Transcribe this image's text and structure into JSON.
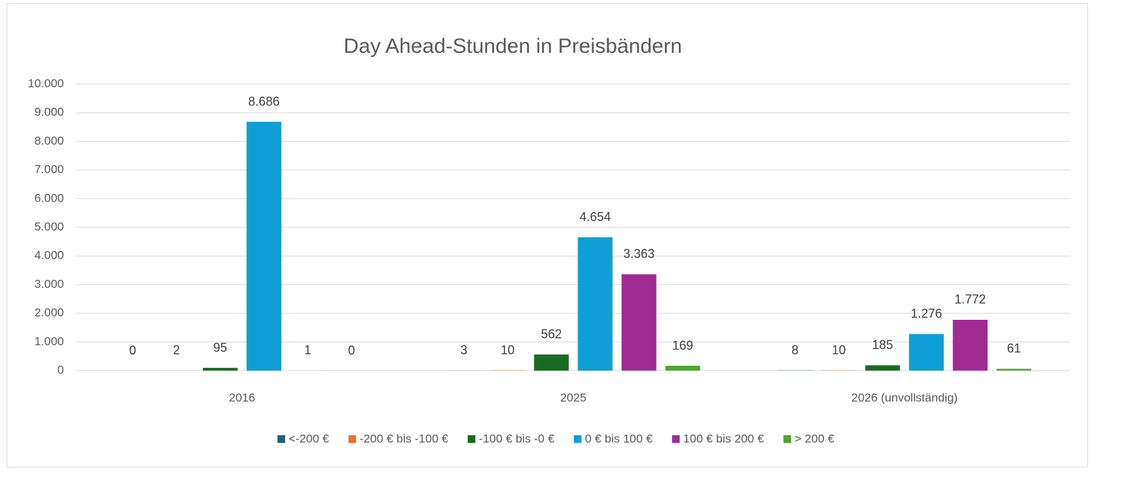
{
  "chart_data": {
    "type": "bar",
    "title": "Day Ahead-Stunden in Preisbändern",
    "categories": [
      "2016",
      "2025",
      "2026 (unvollständig)"
    ],
    "series": [
      {
        "name": "<-200 €",
        "color": "#1f5f7f",
        "values": [
          0,
          3,
          8
        ],
        "value_labels": [
          "0",
          "3",
          "8"
        ]
      },
      {
        "name": "-200 € bis -100 €",
        "color": "#e97132",
        "values": [
          2,
          10,
          10
        ],
        "value_labels": [
          "2",
          "10",
          "10"
        ]
      },
      {
        "name": "-100 € bis -0 €",
        "color": "#196b24",
        "values": [
          95,
          562,
          185
        ],
        "value_labels": [
          "95",
          "562",
          "185"
        ]
      },
      {
        "name": "0 € bis 100 €",
        "color": "#0f9ed5",
        "values": [
          8686,
          4654,
          1276
        ],
        "value_labels": [
          "8.686",
          "4.654",
          "1.276"
        ]
      },
      {
        "name": "100 € bis 200 €",
        "color": "#a02b93",
        "values": [
          1,
          3363,
          1772
        ],
        "value_labels": [
          "1",
          "3.363",
          "1.772"
        ]
      },
      {
        "name": "> 200 €",
        "color": "#4ea72e",
        "values": [
          0,
          169,
          61
        ],
        "value_labels": [
          "0",
          "169",
          "61"
        ]
      }
    ],
    "ylim": [
      0,
      10000
    ],
    "yticks": [
      0,
      {
        "value": 1000,
        "label": "1.000"
      },
      {
        "value": 2000,
        "label": "2.000"
      },
      {
        "value": 3000,
        "label": "3.000"
      },
      {
        "value": 4000,
        "label": "4.000"
      },
      {
        "value": 5000,
        "label": "5.000"
      },
      {
        "value": 6000,
        "label": "6.000"
      },
      {
        "value": 7000,
        "label": "7.000"
      },
      {
        "value": 8000,
        "label": "8.000"
      },
      {
        "value": 9000,
        "label": "9.000"
      },
      {
        "value": 10000,
        "label": "10.000"
      }
    ],
    "grid": true,
    "legend": "bottom"
  }
}
